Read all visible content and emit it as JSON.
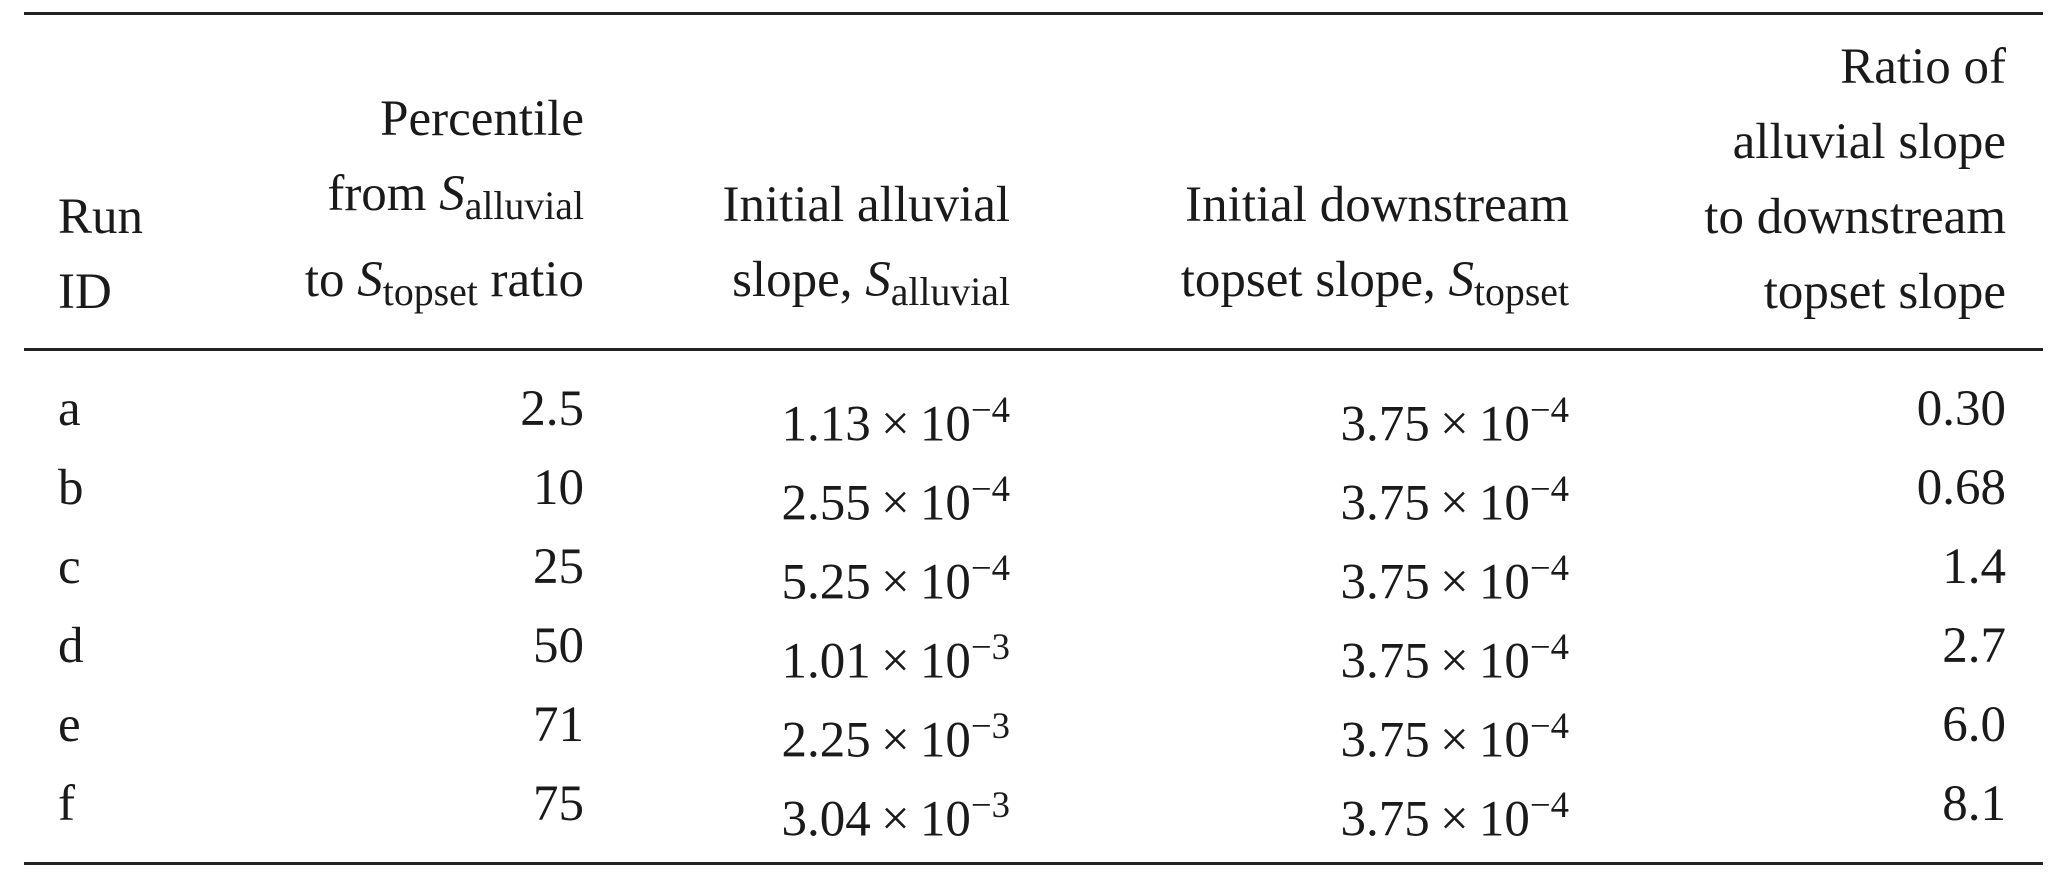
{
  "table": {
    "header": [
      [
        [
          "Run"
        ],
        [
          "ID"
        ]
      ],
      [
        [
          "Percentile"
        ],
        [
          "from ",
          "S",
          "alluvial"
        ],
        [
          "to ",
          "S",
          "topset",
          " ratio"
        ]
      ],
      [
        [
          "Initial alluvial"
        ],
        [
          "slope, ",
          "S",
          "alluvial"
        ]
      ],
      [
        [
          "Initial downstream"
        ],
        [
          "topset slope, ",
          "S",
          "topset"
        ]
      ],
      [
        [
          "Ratio of"
        ],
        [
          "alluvial slope"
        ],
        [
          "to downstream"
        ],
        [
          "topset slope"
        ]
      ]
    ],
    "rows": [
      [
        "a",
        "2.5",
        {
          "mantissa": "1.13",
          "times": "×",
          "base": "10",
          "exponent": "−4"
        },
        {
          "mantissa": "3.75",
          "times": "×",
          "base": "10",
          "exponent": "−4"
        },
        "0.30"
      ],
      [
        "b",
        "10",
        {
          "mantissa": "2.55",
          "times": "×",
          "base": "10",
          "exponent": "−4"
        },
        {
          "mantissa": "3.75",
          "times": "×",
          "base": "10",
          "exponent": "−4"
        },
        "0.68"
      ],
      [
        "c",
        "25",
        {
          "mantissa": "5.25",
          "times": "×",
          "base": "10",
          "exponent": "−4"
        },
        {
          "mantissa": "3.75",
          "times": "×",
          "base": "10",
          "exponent": "−4"
        },
        "1.4"
      ],
      [
        "d",
        "50",
        {
          "mantissa": "1.01",
          "times": "×",
          "base": "10",
          "exponent": "−3"
        },
        {
          "mantissa": "3.75",
          "times": "×",
          "base": "10",
          "exponent": "−4"
        },
        "2.7"
      ],
      [
        "e",
        "71",
        {
          "mantissa": "2.25",
          "times": "×",
          "base": "10",
          "exponent": "−3"
        },
        {
          "mantissa": "3.75",
          "times": "×",
          "base": "10",
          "exponent": "−4"
        },
        "6.0"
      ],
      [
        "f",
        "75",
        {
          "mantissa": "3.04",
          "times": "×",
          "base": "10",
          "exponent": "−3"
        },
        {
          "mantissa": "3.75",
          "times": "×",
          "base": "10",
          "exponent": "−4"
        },
        "8.1"
      ]
    ]
  }
}
